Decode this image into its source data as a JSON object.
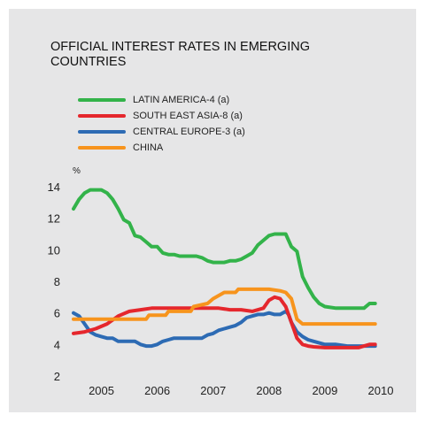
{
  "chart_data": {
    "type": "line",
    "title": "OFFICIAL INTEREST RATES IN EMERGING COUNTRIES",
    "ylabel": "%",
    "xlabel": "",
    "ylim": [
      2,
      14
    ],
    "xlim": [
      2004.5,
      2010.0
    ],
    "yticks": [
      2,
      4,
      6,
      8,
      10,
      12,
      14
    ],
    "xticks": [
      2005,
      2006,
      2007,
      2008,
      2009,
      2010
    ],
    "grid": false,
    "legend_position": "top-left",
    "series": [
      {
        "name": "LATIN AMERICA-4 (a)",
        "color": "#33b34a",
        "points": [
          [
            2004.5,
            12.6
          ],
          [
            2004.6,
            13.2
          ],
          [
            2004.7,
            13.6
          ],
          [
            2004.8,
            13.8
          ],
          [
            2004.9,
            13.8
          ],
          [
            2005.0,
            13.8
          ],
          [
            2005.1,
            13.6
          ],
          [
            2005.2,
            13.2
          ],
          [
            2005.3,
            12.6
          ],
          [
            2005.4,
            11.9
          ],
          [
            2005.5,
            11.7
          ],
          [
            2005.6,
            10.9
          ],
          [
            2005.7,
            10.8
          ],
          [
            2005.8,
            10.5
          ],
          [
            2005.9,
            10.2
          ],
          [
            2006.0,
            10.2
          ],
          [
            2006.1,
            9.8
          ],
          [
            2006.2,
            9.7
          ],
          [
            2006.3,
            9.7
          ],
          [
            2006.4,
            9.6
          ],
          [
            2006.5,
            9.6
          ],
          [
            2006.6,
            9.6
          ],
          [
            2006.7,
            9.6
          ],
          [
            2006.8,
            9.5
          ],
          [
            2006.9,
            9.3
          ],
          [
            2007.0,
            9.2
          ],
          [
            2007.1,
            9.2
          ],
          [
            2007.2,
            9.2
          ],
          [
            2007.3,
            9.3
          ],
          [
            2007.4,
            9.3
          ],
          [
            2007.5,
            9.4
          ],
          [
            2007.6,
            9.6
          ],
          [
            2007.7,
            9.8
          ],
          [
            2007.8,
            10.3
          ],
          [
            2007.9,
            10.6
          ],
          [
            2008.0,
            10.9
          ],
          [
            2008.1,
            11.0
          ],
          [
            2008.2,
            11.0
          ],
          [
            2008.3,
            11.0
          ],
          [
            2008.4,
            10.2
          ],
          [
            2008.5,
            9.9
          ],
          [
            2008.55,
            9.1
          ],
          [
            2008.6,
            8.3
          ],
          [
            2008.7,
            7.6
          ],
          [
            2008.8,
            7.0
          ],
          [
            2008.9,
            6.6
          ],
          [
            2009.0,
            6.4
          ],
          [
            2009.2,
            6.3
          ],
          [
            2009.4,
            6.3
          ],
          [
            2009.6,
            6.3
          ],
          [
            2009.7,
            6.3
          ],
          [
            2009.8,
            6.6
          ],
          [
            2009.9,
            6.6
          ]
        ]
      },
      {
        "name": "SOUTH EAST ASIA-8 (a)",
        "color": "#e5272d",
        "points": [
          [
            2004.5,
            4.7
          ],
          [
            2004.7,
            4.8
          ],
          [
            2004.9,
            5.0
          ],
          [
            2005.1,
            5.3
          ],
          [
            2005.3,
            5.8
          ],
          [
            2005.5,
            6.1
          ],
          [
            2005.7,
            6.2
          ],
          [
            2005.9,
            6.3
          ],
          [
            2006.1,
            6.3
          ],
          [
            2006.3,
            6.3
          ],
          [
            2006.5,
            6.3
          ],
          [
            2006.7,
            6.3
          ],
          [
            2006.9,
            6.3
          ],
          [
            2007.1,
            6.3
          ],
          [
            2007.3,
            6.2
          ],
          [
            2007.5,
            6.2
          ],
          [
            2007.7,
            6.1
          ],
          [
            2007.9,
            6.3
          ],
          [
            2008.0,
            6.8
          ],
          [
            2008.1,
            7.0
          ],
          [
            2008.2,
            6.9
          ],
          [
            2008.3,
            6.4
          ],
          [
            2008.4,
            5.4
          ],
          [
            2008.5,
            4.4
          ],
          [
            2008.6,
            4.0
          ],
          [
            2008.7,
            3.9
          ],
          [
            2008.8,
            3.85
          ],
          [
            2009.0,
            3.8
          ],
          [
            2009.2,
            3.8
          ],
          [
            2009.4,
            3.8
          ],
          [
            2009.6,
            3.8
          ],
          [
            2009.7,
            3.9
          ],
          [
            2009.8,
            4.0
          ],
          [
            2009.9,
            4.0
          ]
        ]
      },
      {
        "name": "CENTRAL EUROPE-3 (a)",
        "color": "#2d6bb4",
        "points": [
          [
            2004.5,
            6.0
          ],
          [
            2004.6,
            5.8
          ],
          [
            2004.7,
            5.3
          ],
          [
            2004.8,
            4.8
          ],
          [
            2004.9,
            4.6
          ],
          [
            2005.0,
            4.5
          ],
          [
            2005.1,
            4.4
          ],
          [
            2005.2,
            4.4
          ],
          [
            2005.3,
            4.2
          ],
          [
            2005.4,
            4.2
          ],
          [
            2005.5,
            4.2
          ],
          [
            2005.6,
            4.2
          ],
          [
            2005.7,
            4.0
          ],
          [
            2005.8,
            3.9
          ],
          [
            2005.9,
            3.9
          ],
          [
            2006.0,
            4.0
          ],
          [
            2006.1,
            4.2
          ],
          [
            2006.2,
            4.3
          ],
          [
            2006.3,
            4.4
          ],
          [
            2006.4,
            4.4
          ],
          [
            2006.5,
            4.4
          ],
          [
            2006.6,
            4.4
          ],
          [
            2006.7,
            4.4
          ],
          [
            2006.8,
            4.4
          ],
          [
            2006.9,
            4.6
          ],
          [
            2007.0,
            4.7
          ],
          [
            2007.1,
            4.9
          ],
          [
            2007.2,
            5.0
          ],
          [
            2007.3,
            5.1
          ],
          [
            2007.4,
            5.2
          ],
          [
            2007.5,
            5.4
          ],
          [
            2007.6,
            5.7
          ],
          [
            2007.7,
            5.8
          ],
          [
            2007.8,
            5.9
          ],
          [
            2007.9,
            5.9
          ],
          [
            2008.0,
            6.0
          ],
          [
            2008.1,
            5.9
          ],
          [
            2008.2,
            5.9
          ],
          [
            2008.3,
            6.1
          ],
          [
            2008.35,
            5.9
          ],
          [
            2008.4,
            5.4
          ],
          [
            2008.5,
            4.8
          ],
          [
            2008.6,
            4.5
          ],
          [
            2008.7,
            4.3
          ],
          [
            2008.8,
            4.2
          ],
          [
            2008.9,
            4.1
          ],
          [
            2009.0,
            4.0
          ],
          [
            2009.2,
            4.0
          ],
          [
            2009.4,
            3.9
          ],
          [
            2009.6,
            3.9
          ],
          [
            2009.8,
            3.9
          ],
          [
            2009.9,
            3.9
          ]
        ]
      },
      {
        "name": "CHINA",
        "color": "#f7941d",
        "points": [
          [
            2004.5,
            5.6
          ],
          [
            2005.0,
            5.6
          ],
          [
            2005.5,
            5.6
          ],
          [
            2005.8,
            5.6
          ],
          [
            2005.85,
            5.85
          ],
          [
            2006.0,
            5.85
          ],
          [
            2006.15,
            5.85
          ],
          [
            2006.2,
            6.1
          ],
          [
            2006.5,
            6.1
          ],
          [
            2006.6,
            6.1
          ],
          [
            2006.65,
            6.4
          ],
          [
            2006.9,
            6.6
          ],
          [
            2007.0,
            6.9
          ],
          [
            2007.2,
            7.3
          ],
          [
            2007.4,
            7.3
          ],
          [
            2007.45,
            7.5
          ],
          [
            2007.6,
            7.5
          ],
          [
            2007.8,
            7.5
          ],
          [
            2008.0,
            7.5
          ],
          [
            2008.2,
            7.4
          ],
          [
            2008.3,
            7.3
          ],
          [
            2008.4,
            6.9
          ],
          [
            2008.5,
            5.6
          ],
          [
            2008.6,
            5.3
          ],
          [
            2008.8,
            5.3
          ],
          [
            2009.0,
            5.3
          ],
          [
            2009.5,
            5.3
          ],
          [
            2009.9,
            5.3
          ]
        ]
      }
    ]
  }
}
